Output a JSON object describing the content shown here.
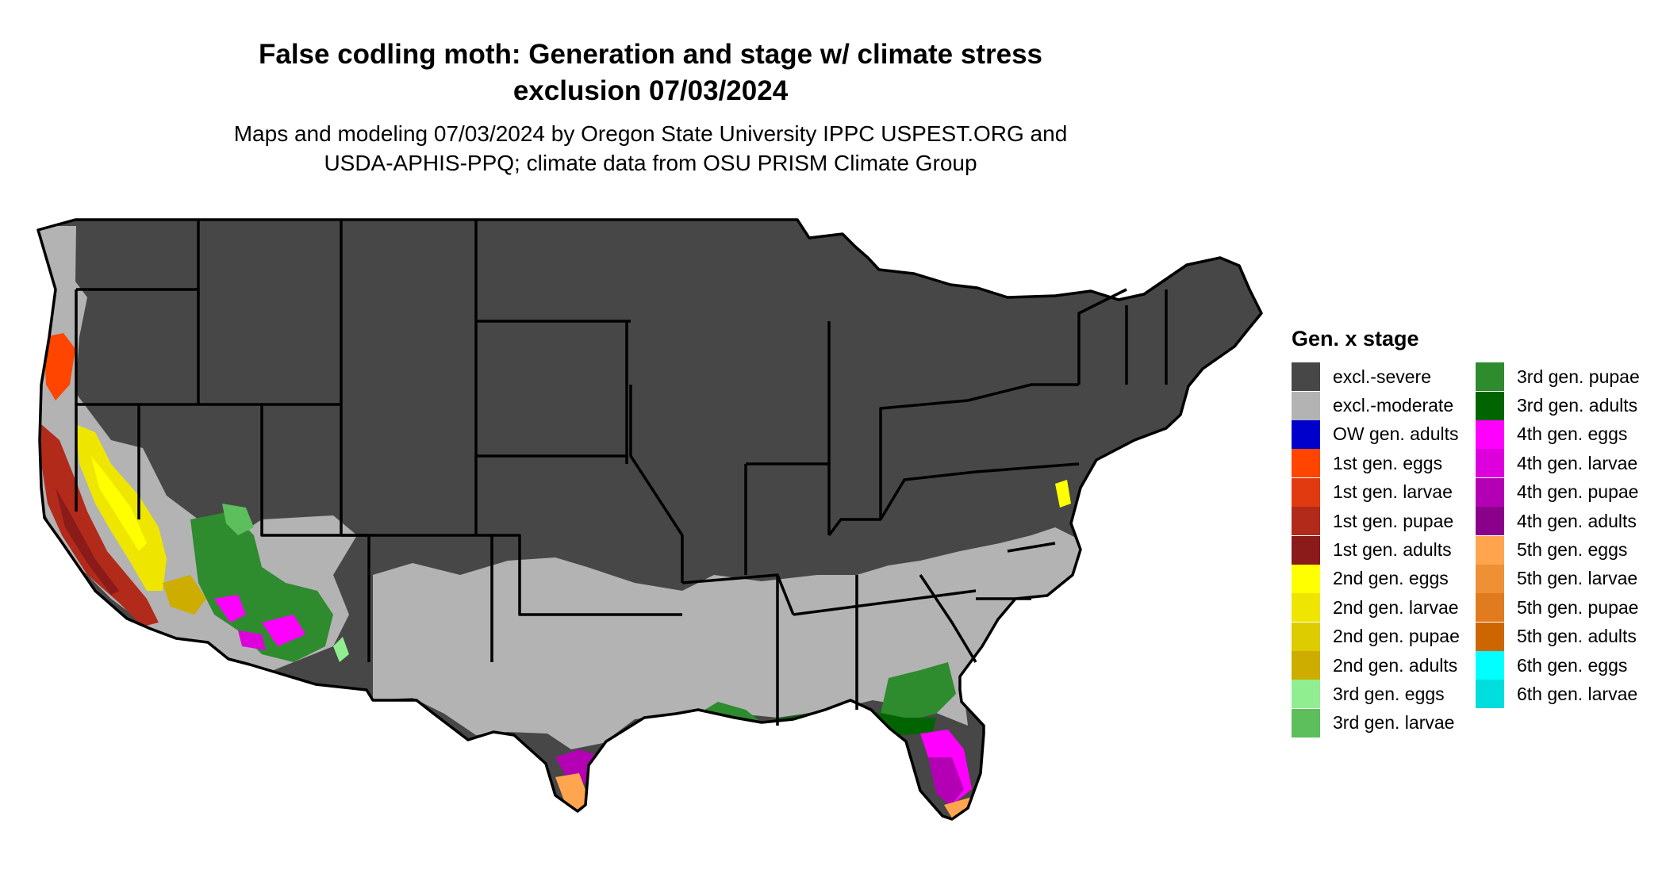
{
  "map": {
    "title_line1": "False codling moth: Generation and stage w/ climate stress",
    "title_line2": "exclusion 07/03/2024",
    "subtitle_line1": "Maps and modeling 07/03/2024 by Oregon State University IPPC USPEST.ORG and",
    "subtitle_line2": "USDA-APHIS-PPQ; climate data from OSU PRISM Climate Group",
    "region": "Contiguous United States"
  },
  "legend": {
    "title": "Gen. x stage",
    "items": [
      {
        "label": "excl.-severe",
        "color": "#474747"
      },
      {
        "label": "excl.-moderate",
        "color": "#b3b3b3"
      },
      {
        "label": "OW gen. adults",
        "color": "#0000cd"
      },
      {
        "label": "1st gen. eggs",
        "color": "#ff4500"
      },
      {
        "label": "1st gen. larvae",
        "color": "#e23a10"
      },
      {
        "label": "1st gen. pupae",
        "color": "#b22a1a"
      },
      {
        "label": "1st gen. adults",
        "color": "#8b1a1a"
      },
      {
        "label": "2nd gen. eggs",
        "color": "#ffff00"
      },
      {
        "label": "2nd gen. larvae",
        "color": "#eee600"
      },
      {
        "label": "2nd gen. pupae",
        "color": "#ddcc00"
      },
      {
        "label": "2nd gen. adults",
        "color": "#cdad00"
      },
      {
        "label": "3rd gen. eggs",
        "color": "#90ee90"
      },
      {
        "label": "3rd gen. larvae",
        "color": "#5cbf5c"
      },
      {
        "label": "3rd gen. pupae",
        "color": "#2e8b2e"
      },
      {
        "label": "3rd gen. adults",
        "color": "#006400"
      },
      {
        "label": "4th gen. eggs",
        "color": "#ff00ff"
      },
      {
        "label": "4th gen. larvae",
        "color": "#dd00dd"
      },
      {
        "label": "4th gen. pupae",
        "color": "#b400b4"
      },
      {
        "label": "4th gen. adults",
        "color": "#8b008b"
      },
      {
        "label": "5th gen. eggs",
        "color": "#ffa54f"
      },
      {
        "label": "5th gen. larvae",
        "color": "#ee9035"
      },
      {
        "label": "5th gen. pupae",
        "color": "#e07b20"
      },
      {
        "label": "5th gen. adults",
        "color": "#cd6600"
      },
      {
        "label": "6th gen. eggs",
        "color": "#00ffff"
      },
      {
        "label": "6th gen. larvae",
        "color": "#00dddd"
      }
    ]
  }
}
